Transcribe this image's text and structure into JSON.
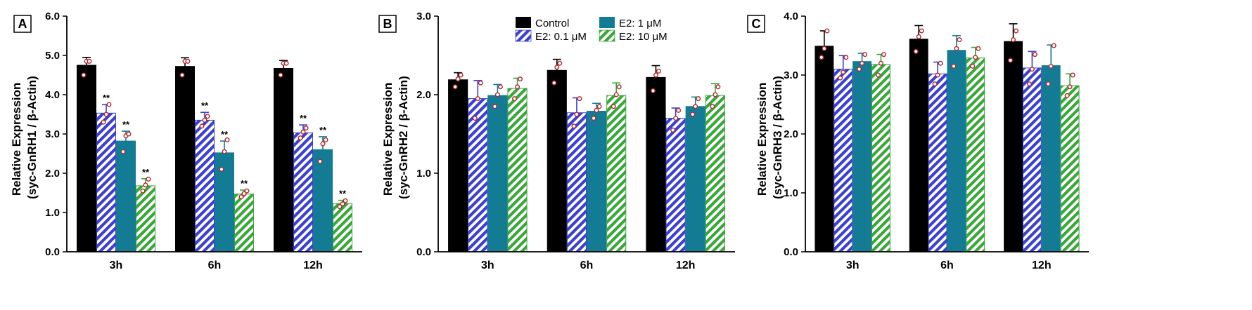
{
  "chart_data": [
    {
      "type": "bar",
      "panel": "A",
      "ylabel": [
        "Relative Expression",
        "(syc-GnRH1 / β-Actin)"
      ],
      "ylim": [
        0,
        6
      ],
      "yticks": [
        "0.0",
        "1.0",
        "2.0",
        "3.0",
        "4.0",
        "5.0",
        "6.0"
      ],
      "categories": [
        "3h",
        "6h",
        "12h"
      ],
      "series": [
        {
          "name": "Control",
          "values": [
            4.75,
            4.72,
            4.67
          ],
          "errors": [
            0.2,
            0.22,
            0.2
          ],
          "points": [
            [
              4.5,
              4.85,
              4.85
            ],
            [
              4.5,
              4.85,
              4.85
            ],
            [
              4.5,
              4.8,
              4.8
            ]
          ],
          "sig": [
            "",
            "",
            ""
          ]
        },
        {
          "name": "E2: 0.1 μM",
          "values": [
            3.53,
            3.35,
            3.03
          ],
          "errors": [
            0.22,
            0.2,
            0.2
          ],
          "points": [
            [
              3.3,
              3.5,
              3.75
            ],
            [
              3.2,
              3.35,
              3.45
            ],
            [
              2.9,
              3.05,
              3.15
            ]
          ],
          "sig": [
            "**",
            "**",
            "**"
          ]
        },
        {
          "name": "E2: 1 μM",
          "values": [
            2.82,
            2.52,
            2.6
          ],
          "errors": [
            0.25,
            0.3,
            0.33
          ],
          "points": [
            [
              2.55,
              2.95,
              3.0
            ],
            [
              2.1,
              2.55,
              2.85
            ],
            [
              2.3,
              2.75,
              2.85
            ]
          ],
          "sig": [
            "**",
            "**",
            "**"
          ]
        },
        {
          "name": "E2: 10 μM",
          "values": [
            1.68,
            1.47,
            1.23
          ],
          "errors": [
            0.18,
            0.1,
            0.08
          ],
          "points": [
            [
              1.55,
              1.7,
              1.85
            ],
            [
              1.4,
              1.48,
              1.55
            ],
            [
              1.15,
              1.22,
              1.3
            ]
          ],
          "sig": [
            "**",
            "**",
            "**"
          ]
        }
      ]
    },
    {
      "type": "bar",
      "panel": "B",
      "ylabel": [
        "Relative Expression",
        "(syc-GnRH2 / β-Actin)"
      ],
      "ylim": [
        0,
        3
      ],
      "yticks": [
        "0.0",
        "1.0",
        "2.0",
        "3.0"
      ],
      "categories": [
        "3h",
        "6h",
        "12h"
      ],
      "series": [
        {
          "name": "Control",
          "values": [
            2.19,
            2.31,
            2.22
          ],
          "errors": [
            0.09,
            0.14,
            0.15
          ],
          "points": [
            [
              2.1,
              2.2,
              2.25
            ],
            [
              2.15,
              2.35,
              2.4
            ],
            [
              2.05,
              2.25,
              2.3
            ]
          ],
          "sig": [
            "",
            "",
            ""
          ]
        },
        {
          "name": "E2: 0.1 μM",
          "values": [
            1.95,
            1.77,
            1.7
          ],
          "errors": [
            0.23,
            0.19,
            0.13
          ],
          "points": [
            [
              1.7,
              1.95,
              2.15
            ],
            [
              1.6,
              1.75,
              1.95
            ],
            [
              1.55,
              1.7,
              1.8
            ]
          ],
          "sig": [
            "",
            "",
            ""
          ]
        },
        {
          "name": "E2: 1 μM",
          "values": [
            1.99,
            1.79,
            1.85
          ],
          "errors": [
            0.14,
            0.1,
            0.12
          ],
          "points": [
            [
              1.85,
              2.0,
              2.1
            ],
            [
              1.7,
              1.8,
              1.85
            ],
            [
              1.75,
              1.85,
              1.95
            ]
          ],
          "sig": [
            "",
            "",
            ""
          ]
        },
        {
          "name": "E2: 10 μM",
          "values": [
            2.08,
            1.99,
            1.99
          ],
          "errors": [
            0.13,
            0.16,
            0.15
          ],
          "points": [
            [
              1.95,
              2.1,
              2.2
            ],
            [
              1.85,
              2.0,
              2.1
            ],
            [
              1.85,
              2.0,
              2.1
            ]
          ],
          "sig": [
            "",
            "",
            ""
          ]
        }
      ]
    },
    {
      "type": "bar",
      "panel": "C",
      "ylabel": [
        "Relative Expression",
        "(syc-GnRH3 / β-Actin)"
      ],
      "ylim": [
        0,
        4
      ],
      "yticks": [
        "0.0",
        "1.0",
        "2.0",
        "3.0",
        "4.0"
      ],
      "categories": [
        "3h",
        "6h",
        "12h"
      ],
      "series": [
        {
          "name": "Control",
          "values": [
            3.49,
            3.61,
            3.57
          ],
          "errors": [
            0.26,
            0.23,
            0.3
          ],
          "points": [
            [
              3.3,
              3.45,
              3.75
            ],
            [
              3.4,
              3.65,
              3.75
            ],
            [
              3.25,
              3.6,
              3.75
            ]
          ],
          "sig": [
            "",
            "",
            ""
          ]
        },
        {
          "name": "E2: 0.1 μM",
          "values": [
            3.1,
            3.02,
            3.12
          ],
          "errors": [
            0.23,
            0.2,
            0.28
          ],
          "points": [
            [
              2.95,
              3.05,
              3.3
            ],
            [
              2.85,
              3.0,
              3.2
            ],
            [
              2.85,
              3.1,
              3.35
            ]
          ],
          "sig": [
            "",
            "",
            ""
          ]
        },
        {
          "name": "E2: 1 μM",
          "values": [
            3.23,
            3.42,
            3.16
          ],
          "errors": [
            0.14,
            0.25,
            0.35
          ],
          "points": [
            [
              3.1,
              3.2,
              3.35
            ],
            [
              3.15,
              3.45,
              3.6
            ],
            [
              2.85,
              3.15,
              3.5
            ]
          ],
          "sig": [
            "",
            "",
            ""
          ]
        },
        {
          "name": "E2: 10 μM",
          "values": [
            3.18,
            3.29,
            2.82
          ],
          "errors": [
            0.17,
            0.18,
            0.2
          ],
          "points": [
            [
              3.0,
              3.2,
              3.35
            ],
            [
              3.15,
              3.3,
              3.45
            ],
            [
              2.65,
              2.8,
              3.0
            ]
          ],
          "sig": [
            "",
            "",
            ""
          ]
        }
      ]
    }
  ],
  "legend": [
    {
      "name": "Control",
      "pattern": "solid-black"
    },
    {
      "name": "E2: 1 μM",
      "pattern": "solid-teal"
    },
    {
      "name": "E2: 0.1 μM",
      "pattern": "hatch-blue"
    },
    {
      "name": "E2: 10 μM",
      "pattern": "hatch-green"
    }
  ],
  "colors": {
    "control": "#000000",
    "low_dose": "#3b3fd0",
    "mid_dose": "#137c94",
    "high_dose": "#3aa63a",
    "points": "#b4282c",
    "axis": "#000000"
  }
}
